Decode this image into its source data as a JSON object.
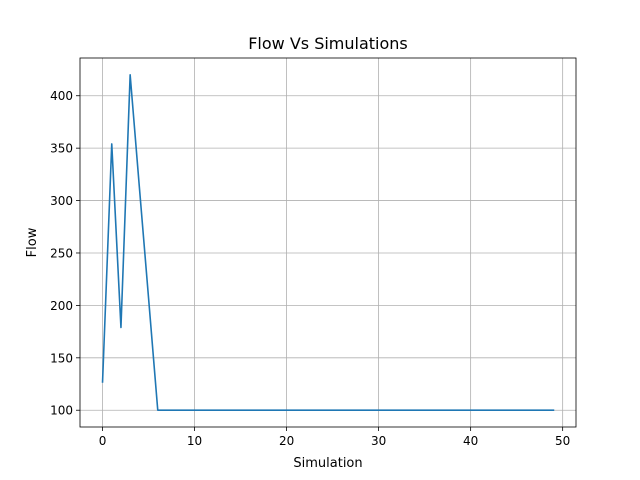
{
  "chart_data": {
    "type": "line",
    "title": "Flow Vs Simulations",
    "xlabel": "Simulation",
    "ylabel": "Flow",
    "xlim": [
      -2.45,
      51.45
    ],
    "ylim": [
      84,
      436
    ],
    "x_ticks": [
      0,
      10,
      20,
      30,
      40,
      50
    ],
    "x_tick_labels": [
      "0",
      "10",
      "20",
      "30",
      "40",
      "50"
    ],
    "y_ticks": [
      100,
      150,
      200,
      250,
      300,
      350,
      400
    ],
    "y_tick_labels": [
      "100",
      "150",
      "200",
      "250",
      "300",
      "350",
      "400"
    ],
    "grid": true,
    "series": [
      {
        "color": "#1f77b4",
        "x": [
          0,
          1,
          2,
          3,
          4,
          5,
          6,
          7,
          8,
          9,
          10,
          11,
          12,
          13,
          14,
          15,
          16,
          17,
          18,
          19,
          20,
          21,
          22,
          23,
          24,
          25,
          26,
          27,
          28,
          29,
          30,
          31,
          32,
          33,
          34,
          35,
          36,
          37,
          38,
          39,
          40,
          41,
          42,
          43,
          44,
          45,
          46,
          47,
          48,
          49
        ],
        "values": [
          127,
          354,
          179,
          420,
          313,
          207,
          100,
          100,
          100,
          100,
          100,
          100,
          100,
          100,
          100,
          100,
          100,
          100,
          100,
          100,
          100,
          100,
          100,
          100,
          100,
          100,
          100,
          100,
          100,
          100,
          100,
          100,
          100,
          100,
          100,
          100,
          100,
          100,
          100,
          100,
          100,
          100,
          100,
          100,
          100,
          100,
          100,
          100,
          100,
          100
        ]
      }
    ]
  }
}
